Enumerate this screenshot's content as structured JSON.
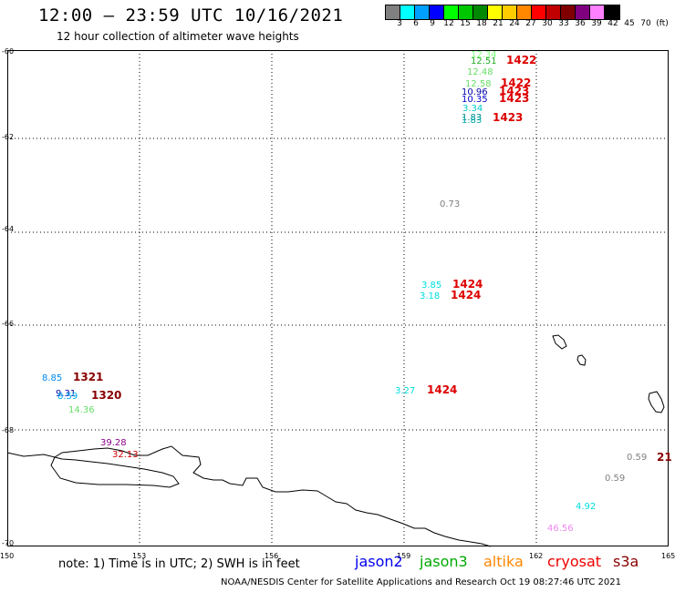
{
  "header": {
    "title": "12:00 – 23:59 UTC 10/16/2021",
    "subtitle": "12 hour collection of altimeter wave heights"
  },
  "legend": {
    "colors": [
      "#808080",
      "#00ffff",
      "#00a0ff",
      "#0000ff",
      "#00ff00",
      "#00c800",
      "#008800",
      "#ffff00",
      "#ffcc00",
      "#ff8800",
      "#ff0000",
      "#c00000",
      "#800000",
      "#800080",
      "#ff80ff",
      "#000000"
    ],
    "ticks": [
      "3",
      "6",
      "9",
      "12",
      "15",
      "18",
      "21",
      "24",
      "27",
      "30",
      "33",
      "36",
      "39",
      "42",
      "45",
      "70",
      "(ft)"
    ]
  },
  "map": {
    "lat_labels": [
      "-60",
      "-62",
      "-64",
      "-66",
      "-68",
      "-70"
    ],
    "lon_labels": [
      "150",
      "153",
      "156",
      "159",
      "162",
      "165"
    ],
    "points": [
      {
        "wave_height": "12.34",
        "color": "#80ff80",
        "time": "1422",
        "time_color": "#dd0000"
      },
      {
        "wave_height": "12.51",
        "color": "#22aa22"
      },
      {
        "wave_height": "12.48",
        "color": "#66dd66"
      },
      {
        "wave_height": "12.58",
        "color": "#66dd66",
        "time": "1422",
        "time_color": "#dd0000"
      },
      {
        "wave_height": "10.96",
        "color": "#0000aa",
        "time": "1423",
        "time_color": "#dd0000"
      },
      {
        "wave_height": "10.35",
        "color": "#0000cc",
        "time": "1423",
        "time_color": "#dd0000"
      },
      {
        "wave_height": "3.34",
        "color": "#00cccc"
      },
      {
        "wave_height": "1.83",
        "color": "#008888",
        "time": "1423",
        "time_color": "#dd0000"
      },
      {
        "wave_height": "1.83",
        "color": "#00aaaa"
      },
      {
        "wave_height": "0.73",
        "color": "#808080"
      },
      {
        "wave_height": "3.85",
        "color": "#00dddd",
        "time": "1424",
        "time_color": "#dd0000"
      },
      {
        "wave_height": "3.18",
        "color": "#00dddd",
        "time": "1424",
        "time_color": "#dd0000"
      },
      {
        "wave_height": "3.27",
        "color": "#00dddd",
        "time": "1424",
        "time_color": "#dd0000"
      },
      {
        "wave_height": "8.85",
        "color": "#0088ee",
        "time": "1321",
        "time_color": "#880000"
      },
      {
        "wave_height": "9.31",
        "color": "#0000aa"
      },
      {
        "wave_height": "8.59",
        "color": "#00aaee",
        "time": "1320",
        "time_color": "#880000"
      },
      {
        "wave_height": "14.36",
        "color": "#66dd66"
      },
      {
        "wave_height": "39.28",
        "color": "#880088"
      },
      {
        "wave_height": "32.13",
        "color": "#cc0000"
      },
      {
        "wave_height": "0.59",
        "color": "#808080",
        "time": "21",
        "time_color": "#880000"
      },
      {
        "wave_height": "0.59",
        "color": "#808080"
      },
      {
        "wave_height": "4.92",
        "color": "#00dddd"
      },
      {
        "wave_height": "46.56",
        "color": "#ee88ee"
      }
    ]
  },
  "footer": {
    "note": "note: 1) Time is in UTC; 2) SWH is in feet",
    "credit": "NOAA/NESDIS Center for Satellite Applications and Research   Oct 19 08:27:46 UTC 2021",
    "satellites": [
      {
        "name": "jason2",
        "color": "#0000ee"
      },
      {
        "name": "jason3",
        "color": "#00aa00"
      },
      {
        "name": "altika",
        "color": "#ff8800"
      },
      {
        "name": "cryosat",
        "color": "#ee0000"
      },
      {
        "name": "s3a",
        "color": "#880000"
      }
    ]
  }
}
